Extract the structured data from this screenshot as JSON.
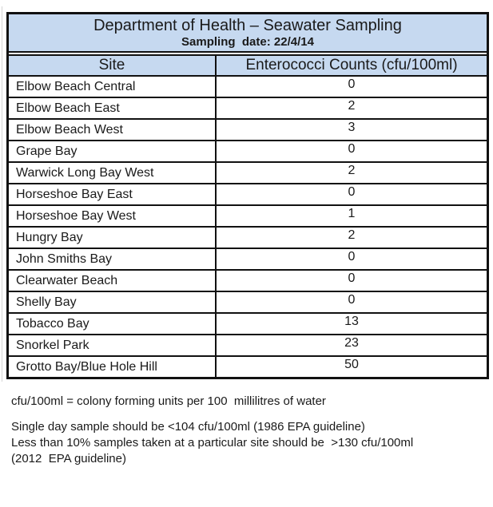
{
  "table": {
    "title": "Department of Health – Seawater Sampling",
    "subtitle": "Sampling  date: 22/4/14",
    "header": {
      "site": "Site",
      "counts": "Enterococci Counts (cfu/100ml)"
    },
    "rows": [
      {
        "site": "Elbow Beach Central",
        "count": "0"
      },
      {
        "site": "Elbow Beach East",
        "count": "2"
      },
      {
        "site": "Elbow Beach West",
        "count": "3"
      },
      {
        "site": "Grape Bay",
        "count": "0"
      },
      {
        "site": "Warwick Long Bay West",
        "count": "2"
      },
      {
        "site": "Horseshoe Bay East",
        "count": "0"
      },
      {
        "site": "Horseshoe Bay West",
        "count": "1"
      },
      {
        "site": "Hungry Bay",
        "count": "2"
      },
      {
        "site": "John Smiths Bay",
        "count": "0"
      },
      {
        "site": "Clearwater Beach",
        "count": "0"
      },
      {
        "site": "Shelly Bay",
        "count": "0"
      },
      {
        "site": "Tobacco Bay",
        "count": "13"
      },
      {
        "site": "Snorkel Park",
        "count": "23"
      },
      {
        "site": "Grotto Bay/Blue Hole Hill",
        "count": "50"
      }
    ],
    "colors": {
      "header_bg": "#c6d9f0",
      "border": "#111111",
      "text": "#1a1a1a"
    }
  },
  "footnotes": {
    "definition": "cfu/100ml = colony forming units per 100  millilitres of water",
    "guidelines": [
      "Single day sample should be <104 cfu/100ml (1986 EPA guideline)",
      "Less than 10% samples taken at a particular site should be  >130 cfu/100ml",
      "(2012  EPA guideline)"
    ]
  }
}
